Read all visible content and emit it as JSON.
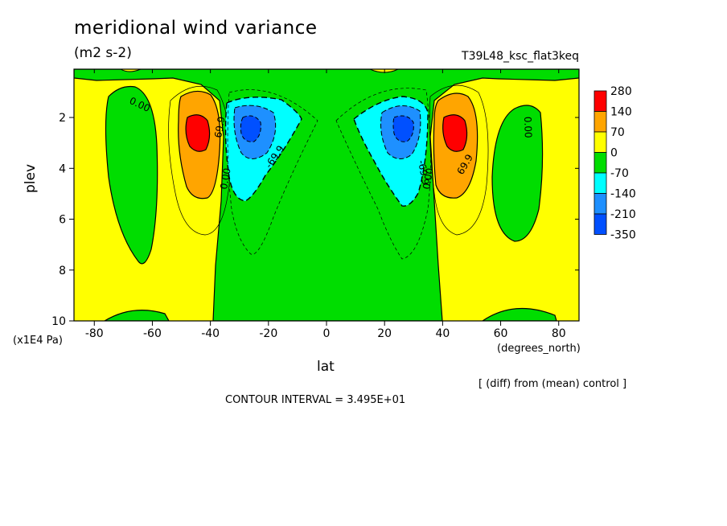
{
  "chart_data": {
    "type": "contour",
    "title": "meridional wind variance",
    "units": "(m2 s-2)",
    "experiment": "T39L48_ksc_flat3keq",
    "xlabel": "lat",
    "xunits": "(degrees_north)",
    "ylabel": "plev",
    "yunits": "(x1E4 Pa)",
    "xlim": [
      -87,
      87
    ],
    "ylim": [
      10,
      0.1
    ],
    "xticks": [
      "-80",
      "-60",
      "-40",
      "-20",
      "0",
      "20",
      "40",
      "60",
      "80"
    ],
    "yticks": [
      "2",
      "4",
      "6",
      "8",
      "10"
    ],
    "contour_interval_text": "CONTOUR INTERVAL = 3.495E+01",
    "note": "[ (diff) from (mean) control ]",
    "contour_labels": [
      "0.00",
      "69.9",
      "-69.9"
    ],
    "colorbar": {
      "labels": [
        "280",
        "140",
        "70",
        "0",
        "-70",
        "-140",
        "-210",
        "-350"
      ],
      "colors": [
        "#ff0000",
        "#ffa500",
        "#ffff00",
        "#00dd00",
        "#00ffff",
        "#1e90ff",
        "#0050ff"
      ]
    },
    "features": [
      {
        "name": "positive max NH",
        "lat": 44,
        "plev": 2.6,
        "value": 280
      },
      {
        "name": "positive max SH",
        "lat": -44,
        "plev": 2.6,
        "value": 280
      },
      {
        "name": "negative min NH",
        "lat": 27,
        "plev": 2.4,
        "value": -350
      },
      {
        "name": "negative min SH",
        "lat": -27,
        "plev": 2.4,
        "value": -350
      }
    ]
  }
}
